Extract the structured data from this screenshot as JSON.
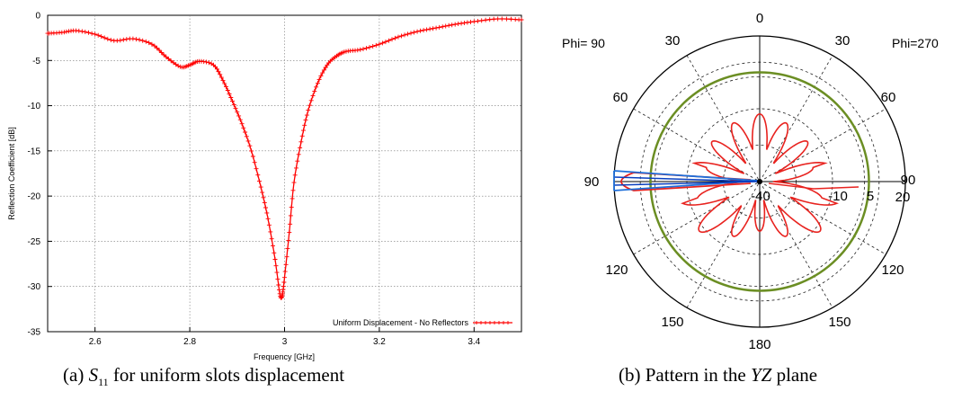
{
  "chart_data": [
    {
      "type": "line",
      "xlabel": "Frequency [GHz]",
      "ylabel": "Reflection Coefficient [dB]",
      "xlim": [
        2.5,
        3.5
      ],
      "ylim": [
        -35,
        0
      ],
      "xticks": [
        "2.6",
        "2.8",
        "3",
        "3.2",
        "3.4"
      ],
      "yticks": [
        "0",
        "-5",
        "-10",
        "-15",
        "-20",
        "-25",
        "-30",
        "-35"
      ],
      "grid": true,
      "legend_position": "bottom-right",
      "series": [
        {
          "name": "Uniform Displacement - No Reflectors",
          "color": "#ff0000",
          "x": [
            2.5,
            2.53,
            2.56,
            2.6,
            2.64,
            2.68,
            2.72,
            2.75,
            2.78,
            2.8,
            2.82,
            2.85,
            2.87,
            2.89,
            2.91,
            2.93,
            2.95,
            2.965,
            2.98,
            2.99,
            2.995,
            3.0,
            3.01,
            3.02,
            3.035,
            3.05,
            3.07,
            3.09,
            3.11,
            3.13,
            3.16,
            3.2,
            3.24,
            3.28,
            3.32,
            3.36,
            3.4,
            3.45,
            3.5
          ],
          "y": [
            -2.0,
            -1.9,
            -1.7,
            -2.1,
            -2.8,
            -2.6,
            -3.2,
            -4.6,
            -5.7,
            -5.5,
            -5.1,
            -5.5,
            -7.2,
            -9.5,
            -12.0,
            -15.0,
            -19.0,
            -22.5,
            -27.0,
            -30.8,
            -31.0,
            -29.0,
            -24.0,
            -18.5,
            -14.0,
            -10.5,
            -7.5,
            -5.5,
            -4.5,
            -4.0,
            -3.8,
            -3.2,
            -2.4,
            -1.8,
            -1.4,
            -1.0,
            -0.7,
            -0.4,
            -0.5
          ]
        }
      ]
    },
    {
      "type": "polar",
      "phi_left": "Phi= 90",
      "phi_right": "Phi=270",
      "angle_labels": [
        "0",
        "30",
        "30",
        "60",
        "60",
        "90",
        "90",
        "120",
        "120",
        "150",
        "150",
        "180"
      ],
      "radial_labels": [
        "-40",
        "-10",
        "5",
        "20"
      ],
      "rlim": [
        -40,
        20
      ],
      "series": [
        {
          "name": "pattern-red",
          "color": "#e8231f"
        },
        {
          "name": "reference-circle",
          "color": "#6b8e23"
        },
        {
          "name": "beam-blue",
          "color": "#1e6fd9"
        }
      ]
    }
  ],
  "captions": {
    "a_prefix": "(a) ",
    "a_s": "S",
    "a_sub": "11",
    "a_suffix": "  for uniform slots displacement",
    "b_prefix": "(b) Pattern in the ",
    "b_italic": "YZ",
    "b_suffix": " plane"
  }
}
